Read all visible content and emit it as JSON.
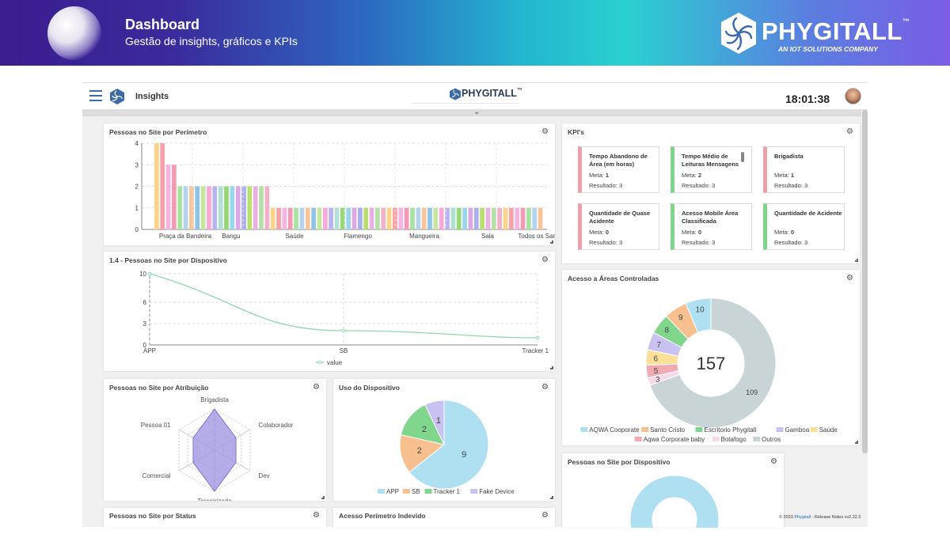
{
  "banner": {
    "title": "Dashboard",
    "subtitle": "Gestão de insights, gráficos e KPIs",
    "brand": "PHYGITALL",
    "brand_tm": "™",
    "brand_tagline": "AN IOT SOLUTIONS COMPANY"
  },
  "topbar": {
    "section": "Insights",
    "center_brand": "PHYGITALL",
    "center_brand_tm": "™",
    "clock": "18:01:38"
  },
  "colors": {
    "brand_dark": "#2b3c5a",
    "accent": "#3d6ba8",
    "kpi_red": "#f0a0a8",
    "kpi_green": "#7ed68b"
  },
  "kpis": {
    "title": "KPI's",
    "meta_label": "Meta:",
    "result_label": "Resultado:",
    "items": [
      {
        "title": "Tempo Abandono de Área (em horas)",
        "meta": "1",
        "result": "3",
        "status": "red"
      },
      {
        "title": "Tempo Médio de Leituras Mensagens",
        "meta": "2",
        "result": "3",
        "status": "green"
      },
      {
        "title": "Brigadista",
        "meta": "1",
        "result": "3",
        "status": "red"
      },
      {
        "title": "Quantidade de Quase Acidente",
        "meta": "0",
        "result": "3",
        "status": "red"
      },
      {
        "title": "Acesso Mobile Área Classificada",
        "meta": "0",
        "result": "3",
        "status": "green"
      },
      {
        "title": "Quantidade de Acidente",
        "meta": "0",
        "result": "3",
        "status": "green"
      }
    ]
  },
  "cards": {
    "perimetro": "Pessoas no Site por Perímetro",
    "dispositivo_line": "1.4 - Pessoas no Site por Dispositivo",
    "atribuicao": "Pessoas no Site por Atribuição",
    "uso": "Uso do Dispositivo",
    "areas": "Acesso a Áreas Controladas",
    "dispositivo_donut": "Pessoas no Site por Dispositivo",
    "status": "Pessoas no Site por Status",
    "indevido": "Acesso Perímetro Indevido"
  },
  "footer": {
    "prefix": "© 2023 ",
    "link": "Phygitall",
    "suffix": " - Release Notes vv2.22.2"
  },
  "chart_data": [
    {
      "type": "bar",
      "title": "Pessoas no Site por Perímetro",
      "ylim": [
        0,
        4
      ],
      "yticks": [
        0,
        1,
        2,
        3,
        4
      ],
      "labeled_categories": [
        "Praça da Bandeira",
        "Bangu",
        "Saúde",
        "Flamengo",
        "Mangueira",
        "Sala",
        "Todos os Santos"
      ],
      "values": [
        4,
        4,
        3,
        3,
        2,
        2,
        2,
        2,
        2,
        2,
        2,
        2,
        2,
        2,
        2,
        2,
        2,
        2,
        2,
        2,
        1,
        1,
        1,
        1,
        1,
        1,
        1,
        1,
        1,
        1,
        1,
        1,
        1,
        1,
        1,
        1,
        1,
        1,
        1,
        1,
        1,
        1,
        1,
        1,
        1,
        1,
        1,
        1,
        1,
        1,
        1,
        1,
        1,
        1,
        1,
        1,
        1,
        1,
        1,
        1,
        1,
        1,
        1,
        1,
        1,
        1,
        1
      ],
      "colors": [
        "#ffd28a",
        "#f6a2a6",
        "#f4b6e0",
        "#f49ab4",
        "#a9e3a1",
        "#b3d4ec",
        "#f8c59a",
        "#8ec5e6",
        "#c6e6a0",
        "#f7a8d8",
        "#b9b3ee",
        "#aee0d6",
        "#96d873",
        "#9bd6f0",
        "#dca8e8",
        "#a8b0ee",
        "#b9e06a",
        "#e9b0e3",
        "#b6dfa8",
        "#f2b0ca"
      ]
    },
    {
      "type": "line",
      "title": "1.4 - Pessoas no Site por Dispositivo",
      "categories": [
        "APP",
        "SB",
        "Tracker 1"
      ],
      "ylim": [
        0,
        10
      ],
      "yticks": [
        0,
        3,
        6,
        10
      ],
      "series": [
        {
          "name": "value",
          "values": [
            10,
            2,
            1
          ],
          "color": "#8fd9b0"
        }
      ]
    },
    {
      "type": "radar",
      "title": "Pessoas no Site por Atribuição",
      "categories": [
        "Brigadista",
        "Colaborador",
        "Dev",
        "Terceirizado",
        "Comercial",
        "Pessoa 01"
      ],
      "values": [
        1,
        0.6,
        0.6,
        1,
        0.6,
        0.6
      ],
      "color": "#9b91e0"
    },
    {
      "type": "pie",
      "title": "Uso do Dispositivo",
      "labels": [
        "APP",
        "SB",
        "Tracker 1",
        "Fake Device"
      ],
      "values": [
        9,
        2,
        2,
        1
      ],
      "colors": [
        "#aee0f2",
        "#f8c08e",
        "#7fd68c",
        "#c9c2f0"
      ]
    },
    {
      "type": "donut",
      "title": "Acesso a Áreas Controladas",
      "center_label": "157",
      "labels": [
        "AQWA Cooporate",
        "Santo Cristo",
        "Escritorio Phygitall",
        "Gamboa",
        "Saúde",
        "Aqwa Corporate baby",
        "Botafogo",
        "Outros"
      ],
      "values": [
        10,
        9,
        8,
        7,
        6,
        5,
        3,
        109
      ],
      "colors": [
        "#aee0f2",
        "#f8c08e",
        "#7fd68c",
        "#c9c2f0",
        "#fbe09a",
        "#f2aab2",
        "#f8d9ec",
        "#c8d4d6"
      ]
    }
  ]
}
